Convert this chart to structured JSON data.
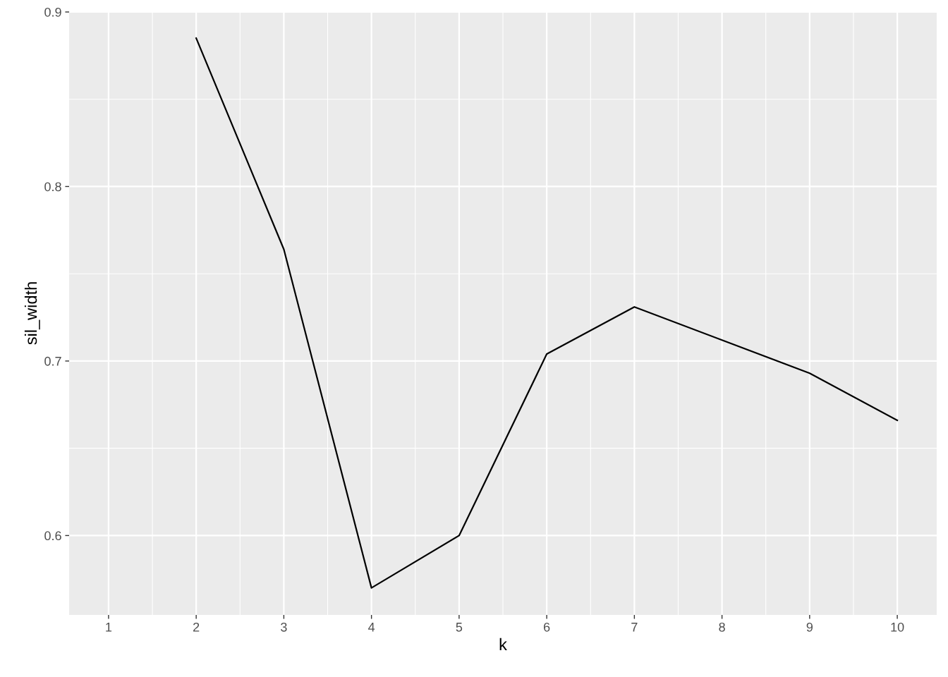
{
  "chart_data": {
    "type": "line",
    "xlabel": "k",
    "ylabel": "sil_width",
    "x": [
      2,
      3,
      4,
      5,
      6,
      7,
      8,
      9,
      10
    ],
    "series": [
      {
        "color": "#000000",
        "values": [
          0.885,
          0.764,
          0.57,
          0.6,
          0.704,
          0.731,
          0.712,
          0.693,
          0.666
        ]
      }
    ],
    "xlim": [
      0.55,
      10.45
    ],
    "xticks": [
      1,
      2,
      3,
      4,
      5,
      6,
      7,
      8,
      9,
      10
    ],
    "ylim": [
      0.5545,
      0.9004
    ],
    "yticks": [
      0.6,
      0.7,
      0.8,
      0.9
    ],
    "grid": true,
    "legend": false,
    "marker": "none",
    "line_style": "solid"
  }
}
